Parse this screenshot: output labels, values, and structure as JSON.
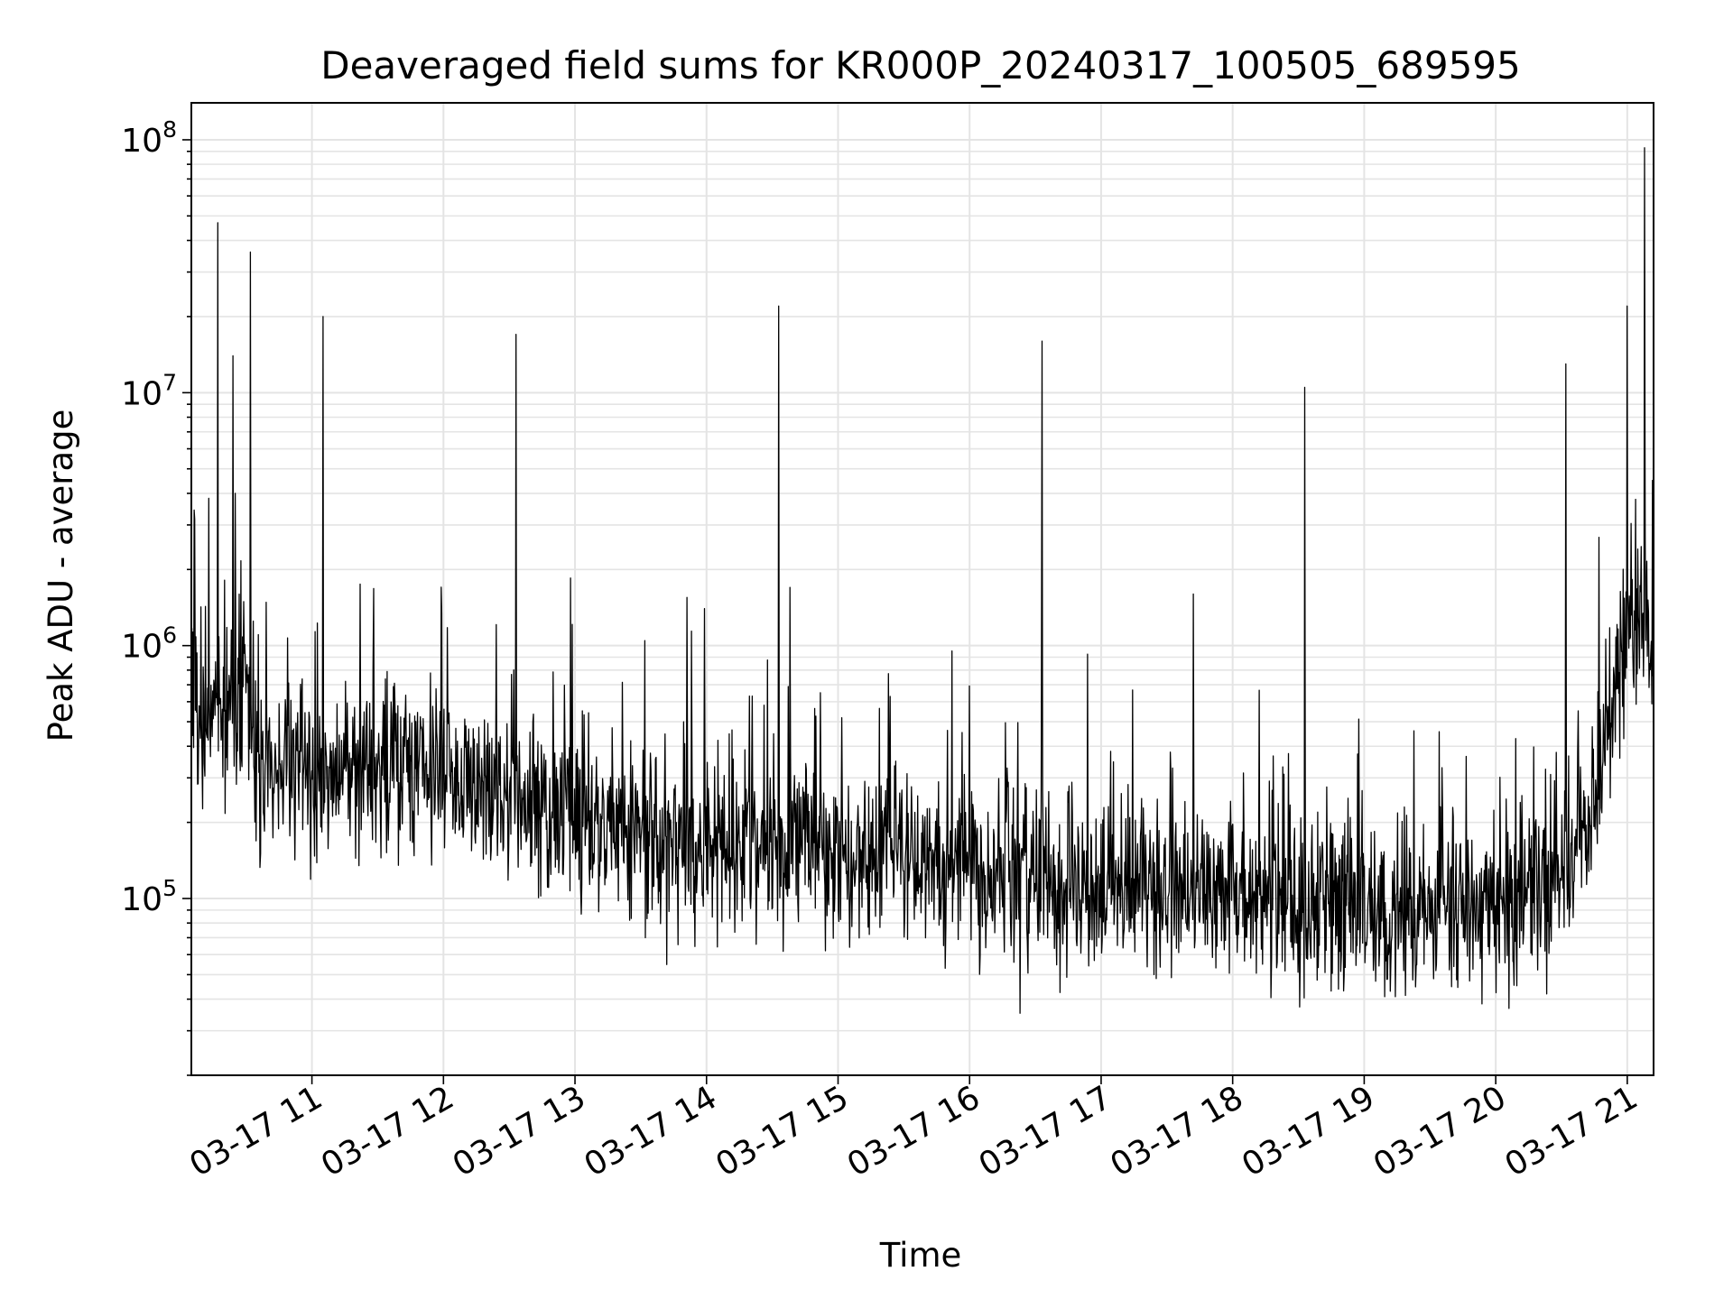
{
  "chart_data": {
    "type": "line",
    "title": "Deaveraged field sums for KR000P_20240317_100505_689595",
    "xlabel": "Time",
    "ylabel": "Peak ADU - average",
    "y_scale": "log",
    "ylim": [
      20000,
      140000000
    ],
    "xlim": [
      "2024-03-17 10:05",
      "2024-03-17 21:12"
    ],
    "x_ticks": [
      {
        "t": "2024-03-17 11:00",
        "label": "03-17 11"
      },
      {
        "t": "2024-03-17 12:00",
        "label": "03-17 12"
      },
      {
        "t": "2024-03-17 13:00",
        "label": "03-17 13"
      },
      {
        "t": "2024-03-17 14:00",
        "label": "03-17 14"
      },
      {
        "t": "2024-03-17 15:00",
        "label": "03-17 15"
      },
      {
        "t": "2024-03-17 16:00",
        "label": "03-17 16"
      },
      {
        "t": "2024-03-17 17:00",
        "label": "03-17 17"
      },
      {
        "t": "2024-03-17 18:00",
        "label": "03-17 18"
      },
      {
        "t": "2024-03-17 19:00",
        "label": "03-17 19"
      },
      {
        "t": "2024-03-17 20:00",
        "label": "03-17 20"
      },
      {
        "t": "2024-03-17 21:00",
        "label": "03-17 21"
      }
    ],
    "y_ticks": [
      {
        "value": 100000,
        "base": "10",
        "exp": "5"
      },
      {
        "value": 1000000,
        "base": "10",
        "exp": "6"
      },
      {
        "value": 10000000,
        "base": "10",
        "exp": "7"
      },
      {
        "value": 100000000,
        "base": "10",
        "exp": "8"
      }
    ],
    "grid": true,
    "line_color": "#000000",
    "series": [
      {
        "baseline": [
          [
            "2024-03-17 10:05",
            600000
          ],
          [
            "2024-03-17 10:20",
            550000
          ],
          [
            "2024-03-17 10:30",
            700000
          ],
          [
            "2024-03-17 10:35",
            300000
          ],
          [
            "2024-03-17 11:00",
            330000
          ],
          [
            "2024-03-17 11:30",
            350000
          ],
          [
            "2024-03-17 12:00",
            340000
          ],
          [
            "2024-03-17 12:30",
            260000
          ],
          [
            "2024-03-17 13:00",
            200000
          ],
          [
            "2024-03-17 13:30",
            180000
          ],
          [
            "2024-03-17 14:00",
            170000
          ],
          [
            "2024-03-17 14:30",
            160000
          ],
          [
            "2024-03-17 15:00",
            150000
          ],
          [
            "2024-03-17 15:30",
            140000
          ],
          [
            "2024-03-17 16:00",
            125000
          ],
          [
            "2024-03-17 16:30",
            115000
          ],
          [
            "2024-03-17 17:00",
            110000
          ],
          [
            "2024-03-17 17:30",
            105000
          ],
          [
            "2024-03-17 18:00",
            100000
          ],
          [
            "2024-03-17 18:30",
            95000
          ],
          [
            "2024-03-17 19:00",
            95000
          ],
          [
            "2024-03-17 19:30",
            90000
          ],
          [
            "2024-03-17 20:00",
            90000
          ],
          [
            "2024-03-17 20:30",
            110000
          ],
          [
            "2024-03-17 20:45",
            250000
          ],
          [
            "2024-03-17 21:00",
            1400000
          ],
          [
            "2024-03-17 21:05",
            1300000
          ],
          [
            "2024-03-17 21:12",
            700000
          ]
        ],
        "spikes": [
          [
            "2024-03-17 10:17",
            47000000
          ],
          [
            "2024-03-17 10:24",
            14000000
          ],
          [
            "2024-03-17 10:25",
            4000000
          ],
          [
            "2024-03-17 10:32",
            36000000
          ],
          [
            "2024-03-17 11:05",
            20000000
          ],
          [
            "2024-03-17 11:22",
            1750000
          ],
          [
            "2024-03-17 12:33",
            17000000
          ],
          [
            "2024-03-17 12:58",
            1850000
          ],
          [
            "2024-03-17 13:51",
            1550000
          ],
          [
            "2024-03-17 13:59",
            1400000
          ],
          [
            "2024-03-17 14:33",
            22000000
          ],
          [
            "2024-03-17 14:38",
            1700000
          ],
          [
            "2024-03-17 16:33",
            16000000
          ],
          [
            "2024-03-17 17:42",
            1600000
          ],
          [
            "2024-03-17 18:33",
            10500000
          ],
          [
            "2024-03-17 20:32",
            13000000
          ],
          [
            "2024-03-17 21:00",
            22000000
          ],
          [
            "2024-03-17 21:08",
            93000000
          ]
        ]
      }
    ]
  }
}
